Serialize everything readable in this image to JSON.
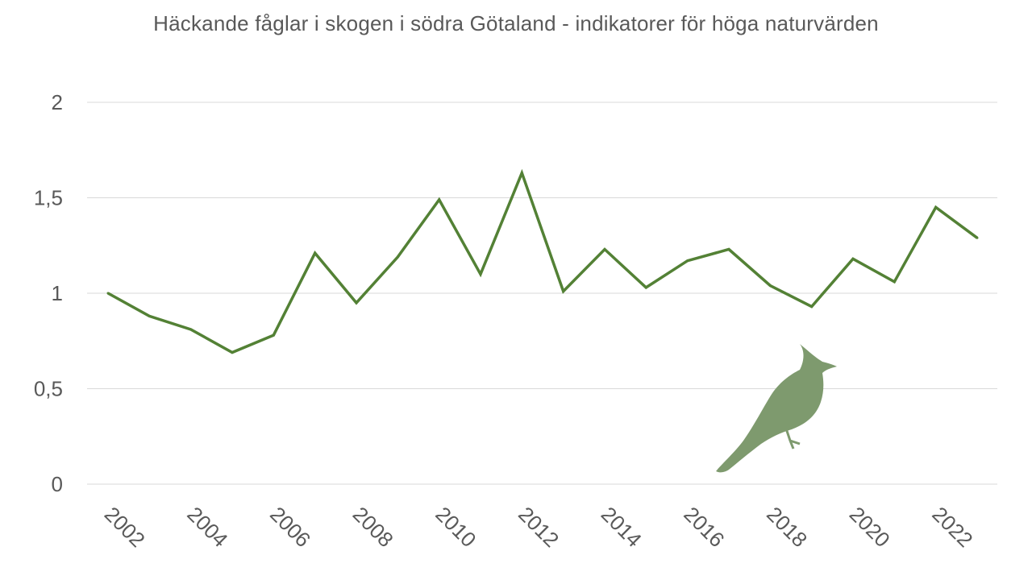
{
  "chart_data": {
    "type": "line",
    "title": "Häckande fåglar i skogen i södra Götaland - indikatorer för höga naturvärden",
    "xlabel": "",
    "ylabel": "",
    "x": [
      2002,
      2003,
      2004,
      2005,
      2006,
      2007,
      2008,
      2009,
      2010,
      2011,
      2012,
      2013,
      2014,
      2015,
      2016,
      2017,
      2018,
      2019,
      2020,
      2021,
      2022,
      2023
    ],
    "x_tick_labels": [
      "2002",
      "2004",
      "2006",
      "2008",
      "2010",
      "2012",
      "2014",
      "2016",
      "2018",
      "2020",
      "2022"
    ],
    "y_tick_labels": [
      "0",
      "0,5",
      "1",
      "1,5",
      "2"
    ],
    "ylim": [
      0,
      2
    ],
    "grid": true,
    "series": [
      {
        "color": "#538135",
        "values": [
          1.0,
          0.88,
          0.81,
          0.69,
          0.78,
          1.21,
          0.95,
          1.19,
          1.49,
          1.1,
          1.63,
          1.01,
          1.23,
          1.03,
          1.17,
          1.23,
          1.04,
          0.93,
          1.18,
          1.06,
          1.45,
          1.29
        ]
      }
    ],
    "decoration": {
      "icon": "bird-silhouette-icon",
      "color": "#7e9a6e"
    }
  }
}
